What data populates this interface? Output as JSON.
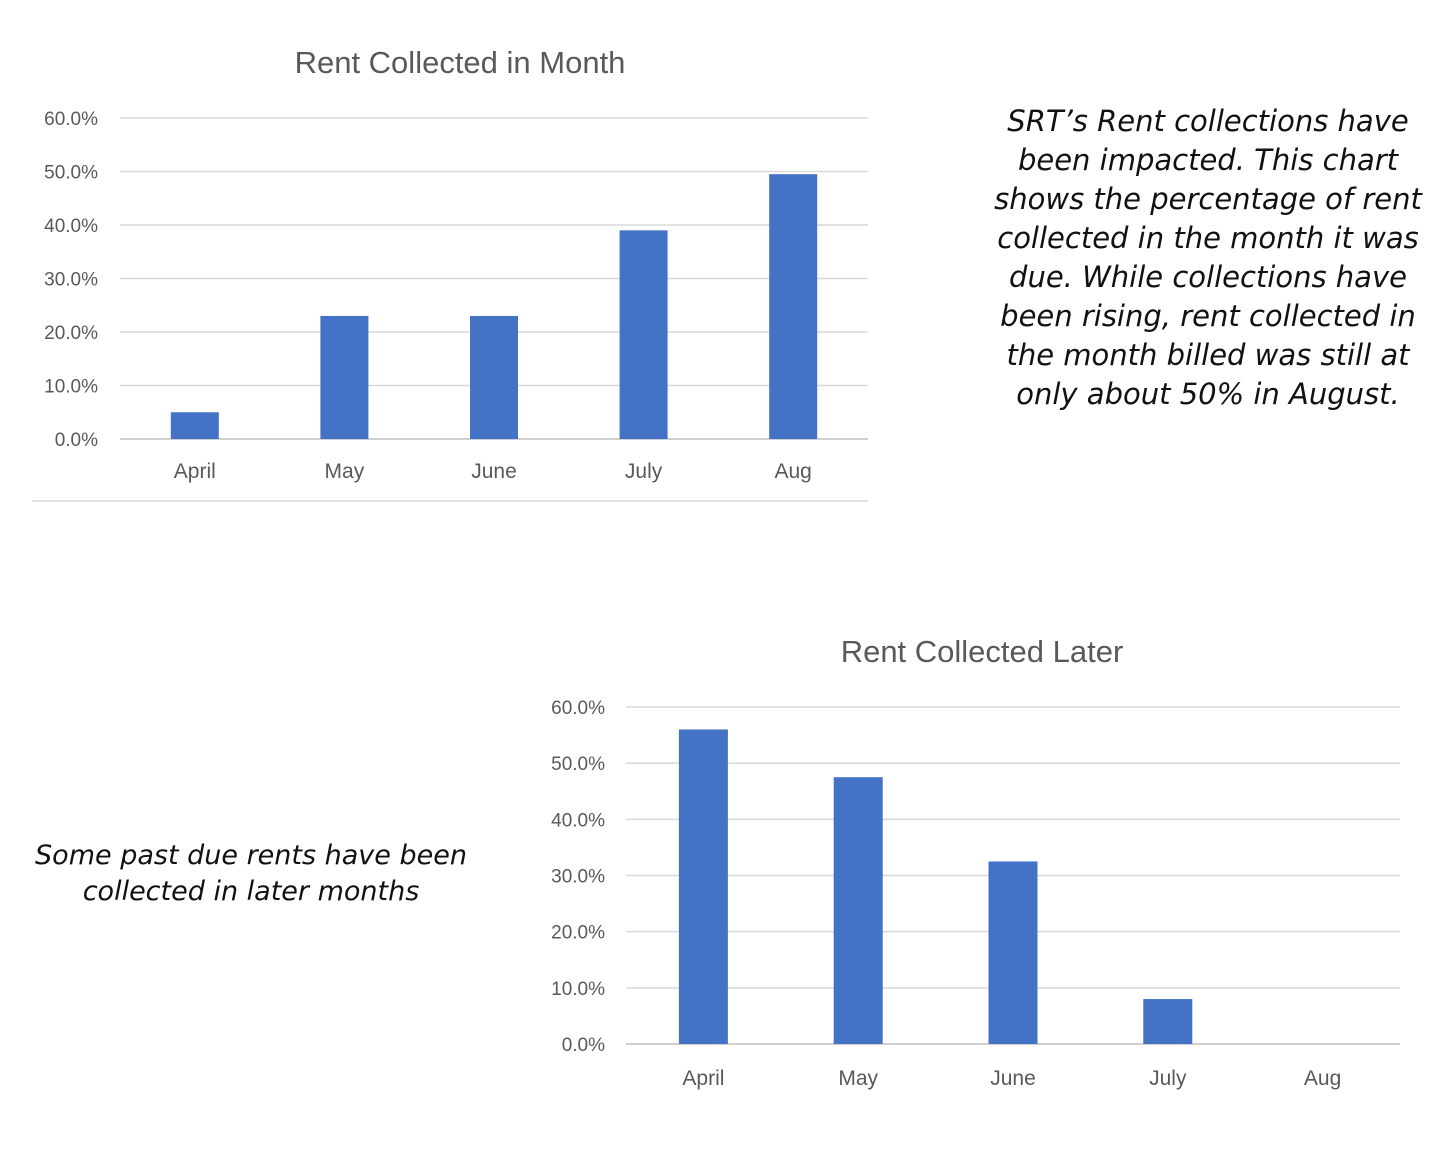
{
  "colors": {
    "bar": "#4472c4",
    "grid": "#d9d9d9",
    "text": "#595959"
  },
  "notes": {
    "top": "SRT’s Rent collections have been impacted.  This chart shows the percentage of rent collected in the month it was due.  While collections have been rising, rent collected in the month billed was still at only about 50% in August.",
    "bottom": "Some past due rents have been collected in later months"
  },
  "chart_data": [
    {
      "type": "bar",
      "title": "Rent Collected in Month",
      "categories": [
        "April",
        "May",
        "June",
        "July",
        "Aug"
      ],
      "values": [
        5.0,
        23.0,
        23.0,
        39.0,
        49.5
      ],
      "ylim": [
        0,
        60
      ],
      "yticks": [
        "0.0%",
        "10.0%",
        "20.0%",
        "30.0%",
        "40.0%",
        "50.0%",
        "60.0%"
      ],
      "xlabel": "",
      "ylabel": "",
      "grid": true,
      "legend": "none"
    },
    {
      "type": "bar",
      "title": "Rent Collected Later",
      "categories": [
        "April",
        "May",
        "June",
        "July",
        "Aug"
      ],
      "values": [
        56.0,
        47.5,
        32.5,
        8.0,
        0
      ],
      "ylim": [
        0,
        60
      ],
      "yticks": [
        "0.0%",
        "10.0%",
        "20.0%",
        "30.0%",
        "40.0%",
        "50.0%",
        "60.0%"
      ],
      "xlabel": "",
      "ylabel": "",
      "grid": true,
      "legend": "none"
    }
  ]
}
